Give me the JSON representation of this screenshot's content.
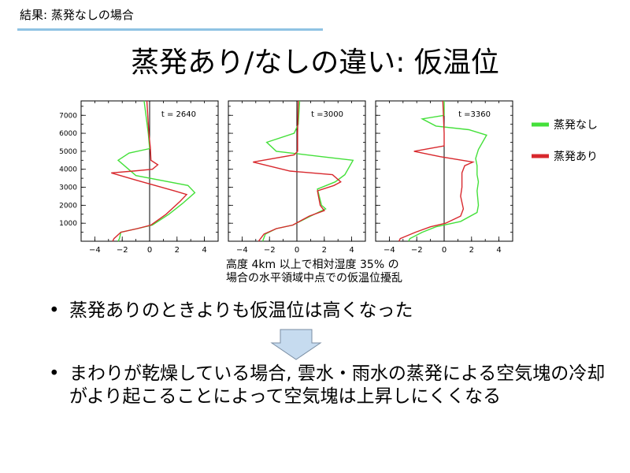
{
  "header": {
    "text": "結果: 蒸発なしの場合",
    "rule_color": "#8fc3e3"
  },
  "title": "蒸発あり/なしの違い: 仮温位",
  "caption": {
    "line1": "高度 4km 以上で相対湿度 35% の",
    "line2": "場合の水平領域中点での仮温位擾乱"
  },
  "bullets": [
    {
      "marker": "•",
      "text": "蒸発ありのときよりも仮温位は高くなった"
    },
    {
      "marker": "•",
      "text": "まわりが乾燥している場合, 雲水・雨水の蒸発による空気塊の冷却がより起こることによって空気塊は上昇しにくくなる"
    }
  ],
  "arrow": {
    "fill": "#c6dbef",
    "stroke": "#7a8ea3"
  },
  "chart_data": [
    {
      "type": "line",
      "panel_label": "t = 2640",
      "xlim": [
        -5,
        5
      ],
      "ylim": [
        0,
        7800
      ],
      "xticks": [
        -4,
        -2,
        0,
        2,
        4
      ],
      "yticks": [
        1000,
        2000,
        3000,
        4000,
        5000,
        6000,
        7000
      ],
      "legend": "right",
      "series": [
        {
          "name": "蒸発なし",
          "color": "#44e03a",
          "points": [
            [
              -0.4,
              7800
            ],
            [
              -0.1,
              6000
            ],
            [
              0,
              5150
            ],
            [
              -1.5,
              4900
            ],
            [
              -2.3,
              4500
            ],
            [
              -1,
              3650
            ],
            [
              2.8,
              3100
            ],
            [
              3.3,
              2700
            ],
            [
              2.4,
              2100
            ],
            [
              1.4,
              1500
            ],
            [
              0.2,
              900
            ],
            [
              -0.9,
              700
            ],
            [
              -2.1,
              500
            ],
            [
              -2.2,
              150
            ],
            [
              -2.3,
              0
            ]
          ]
        },
        {
          "name": "蒸発あり",
          "color": "#d8282d",
          "points": [
            [
              -0.2,
              7800
            ],
            [
              -0.05,
              6000
            ],
            [
              0.05,
              5200
            ],
            [
              0.1,
              4500
            ],
            [
              0.6,
              4250
            ],
            [
              0.2,
              4000
            ],
            [
              -1.2,
              3900
            ],
            [
              -2.8,
              3800
            ],
            [
              -1,
              3400
            ],
            [
              1.8,
              2800
            ],
            [
              2.7,
              2600
            ],
            [
              2.2,
              2200
            ],
            [
              1.2,
              1500
            ],
            [
              0.1,
              900
            ],
            [
              -0.9,
              700
            ],
            [
              -2.1,
              500
            ],
            [
              -2.6,
              150
            ],
            [
              -2.7,
              0
            ]
          ]
        }
      ]
    },
    {
      "type": "line",
      "panel_label": "t =3000",
      "xlim": [
        -5,
        5
      ],
      "ylim": [
        0,
        7800
      ],
      "xticks": [
        -4,
        -2,
        0,
        2,
        4
      ],
      "yticks": [
        1000,
        2000,
        3000,
        4000,
        5000,
        6000,
        7000
      ],
      "legend": "right",
      "series": [
        {
          "name": "蒸発なし",
          "color": "#44e03a",
          "points": [
            [
              0.2,
              7800
            ],
            [
              0.1,
              6500
            ],
            [
              -0.2,
              6000
            ],
            [
              -2.2,
              5500
            ],
            [
              -1.5,
              5000
            ],
            [
              1.8,
              4700
            ],
            [
              4.1,
              4500
            ],
            [
              3.5,
              3700
            ],
            [
              2.8,
              3300
            ],
            [
              1.5,
              2900
            ],
            [
              1.8,
              2000
            ],
            [
              2.1,
              1800
            ],
            [
              1,
              1400
            ],
            [
              -0.3,
              900
            ],
            [
              -1.5,
              700
            ],
            [
              -2.3,
              400
            ],
            [
              -2.5,
              0
            ]
          ]
        },
        {
          "name": "蒸発あり",
          "color": "#d8282d",
          "points": [
            [
              0.1,
              7800
            ],
            [
              0.05,
              6000
            ],
            [
              0.05,
              5000
            ],
            [
              -0.2,
              4800
            ],
            [
              -3.2,
              4400
            ],
            [
              -0.5,
              3900
            ],
            [
              2.6,
              3700
            ],
            [
              3.2,
              3300
            ],
            [
              2.7,
              3100
            ],
            [
              1.5,
              2800
            ],
            [
              1.7,
              2000
            ],
            [
              2,
              1700
            ],
            [
              0.9,
              1400
            ],
            [
              -0.3,
              900
            ],
            [
              -1.5,
              700
            ],
            [
              -2.4,
              400
            ],
            [
              -2.8,
              0
            ]
          ]
        }
      ]
    },
    {
      "type": "line",
      "panel_label": "t =3360",
      "xlim": [
        -5,
        5
      ],
      "ylim": [
        0,
        7800
      ],
      "xticks": [
        -4,
        -2,
        0,
        2,
        4
      ],
      "yticks": [
        1000,
        2000,
        3000,
        4000,
        5000,
        6000,
        7000
      ],
      "legend": "right",
      "series": [
        {
          "name": "蒸発なし",
          "color": "#44e03a",
          "points": [
            [
              0,
              7800
            ],
            [
              0,
              7000
            ],
            [
              -1.6,
              6800
            ],
            [
              -0.6,
              6400
            ],
            [
              1.8,
              6200
            ],
            [
              3.1,
              5900
            ],
            [
              2.5,
              5100
            ],
            [
              2.3,
              4600
            ],
            [
              2.4,
              4200
            ],
            [
              2.4,
              3700
            ],
            [
              2.5,
              3300
            ],
            [
              2.4,
              2800
            ],
            [
              2.5,
              2000
            ],
            [
              2.4,
              1600
            ],
            [
              1.2,
              1100
            ],
            [
              -0.6,
              800
            ],
            [
              -1.6,
              500
            ],
            [
              -2.5,
              150
            ],
            [
              -2.6,
              0
            ]
          ]
        },
        {
          "name": "蒸発あり",
          "color": "#d8282d",
          "points": [
            [
              -0.1,
              7800
            ],
            [
              -0.05,
              7000
            ],
            [
              0,
              6000
            ],
            [
              0,
              5300
            ],
            [
              -2.2,
              5000
            ],
            [
              -0.3,
              4700
            ],
            [
              2.1,
              4400
            ],
            [
              1.5,
              4200
            ],
            [
              1.3,
              3800
            ],
            [
              1.3,
              3000
            ],
            [
              1.2,
              2500
            ],
            [
              1.4,
              1800
            ],
            [
              1.2,
              1400
            ],
            [
              0.1,
              1000
            ],
            [
              -1,
              800
            ],
            [
              -2.1,
              500
            ],
            [
              -3.2,
              150
            ],
            [
              -3.3,
              0
            ]
          ]
        }
      ]
    }
  ]
}
